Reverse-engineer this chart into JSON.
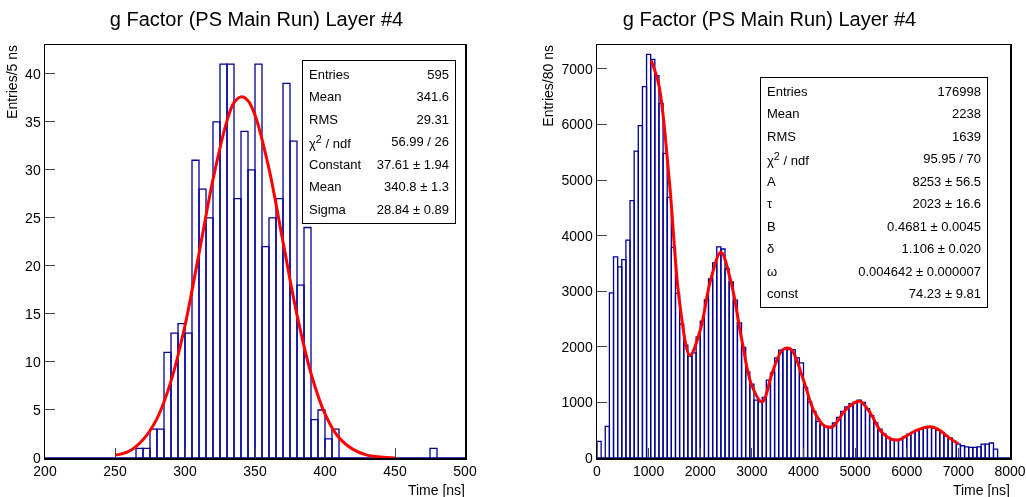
{
  "chart_data": [
    {
      "type": "histogram",
      "title": "g Factor (PS Main Run) Layer #4",
      "xlabel": "Time [ns]",
      "ylabel": "Entries/5 ns",
      "xlim": [
        200,
        500
      ],
      "xticks": [
        200,
        250,
        300,
        350,
        400,
        450,
        500
      ],
      "ylim": [
        0,
        43
      ],
      "yticks": [
        0,
        5,
        10,
        15,
        20,
        25,
        30,
        35,
        40
      ],
      "grid": false,
      "legend": false,
      "annotations": [
        "Entries",
        "595",
        "Mean",
        "341.6",
        "RMS",
        "29.31",
        "χ$^{2}$ / ndf",
        "56.99 / 26",
        "Constant",
        "37.61 ± 1.94",
        "Mean",
        "340.8 ± 1.3",
        "Sigma",
        "28.84 ± 0.89"
      ],
      "series": [
        {
          "type": "histogram",
          "color": "#000099",
          "bins": [
            200,
            205,
            210,
            215,
            220,
            225,
            230,
            235,
            240,
            245,
            250,
            255,
            260,
            265,
            270,
            275,
            280,
            285,
            290,
            295,
            300,
            305,
            310,
            315,
            320,
            325,
            330,
            335,
            340,
            345,
            350,
            355,
            360,
            365,
            370,
            375,
            380,
            385,
            390,
            395,
            400,
            405,
            410,
            415,
            420,
            425,
            430,
            435,
            440,
            445,
            450,
            455,
            460,
            465,
            470,
            475,
            480,
            485,
            490,
            495,
            500
          ],
          "values": [
            0,
            0,
            0,
            0,
            0,
            0,
            0,
            0,
            0,
            0,
            0,
            0,
            0,
            1,
            1,
            3,
            3,
            11,
            13,
            14,
            13,
            31,
            28,
            25,
            35,
            41,
            41,
            27,
            34,
            30,
            41,
            22,
            25,
            27,
            39,
            33,
            18,
            24,
            4,
            5,
            2,
            3,
            0,
            0,
            0,
            0,
            0,
            0,
            0,
            0,
            0,
            0,
            0,
            0,
            0,
            1,
            0,
            0,
            0,
            0
          ]
        },
        {
          "type": "line",
          "color": "#ff0000",
          "x": [
            250,
            260,
            270,
            280,
            290,
            300,
            310,
            320,
            330,
            335,
            340,
            345,
            350,
            360,
            370,
            380,
            390,
            400,
            410,
            420,
            430,
            440,
            450
          ],
          "values": [
            0.3,
            0.7,
            1.9,
            4.1,
            8,
            13.8,
            21.3,
            29,
            35.1,
            37,
            37.6,
            37.2,
            35.7,
            30.1,
            22.5,
            14.9,
            8.8,
            4.6,
            2.1,
            0.9,
            0.3,
            0.1,
            0
          ]
        }
      ]
    },
    {
      "type": "histogram",
      "title": "g Factor (PS Main Run) Layer #4",
      "xlabel": "Time [ns]",
      "ylabel": "Entries/80 ns",
      "xlim": [
        0,
        8000
      ],
      "xticks": [
        0,
        1000,
        2000,
        3000,
        4000,
        5000,
        6000,
        7000,
        8000
      ],
      "ylim": [
        0,
        7430
      ],
      "yticks": [
        0,
        1000,
        2000,
        3000,
        4000,
        5000,
        6000,
        7000
      ],
      "grid": false,
      "legend": false,
      "annotations": [
        "Entries",
        "176998",
        "Mean",
        "2238",
        "RMS",
        "1639",
        "χ$^{2}$ / ndf",
        "95.95 / 70",
        "A",
        "8253 ± 56.5",
        "τ",
        "2023 ± 16.6",
        "B",
        "0.4681 ± 0.0045",
        "δ",
        "1.106 ± 0.020",
        "ω",
        "0.004642 ± 0.000007",
        "const",
        "74.23 ± 9.81"
      ],
      "series": [
        {
          "type": "histogram",
          "color": "#000099",
          "bins": [
            0,
            80,
            160,
            240,
            320,
            400,
            480,
            560,
            640,
            720,
            800,
            880,
            960,
            1040,
            1120,
            1200,
            1280,
            1360,
            1440,
            1520,
            1600,
            1680,
            1760,
            1840,
            1920,
            2000,
            2080,
            2160,
            2240,
            2320,
            2400,
            2480,
            2560,
            2640,
            2720,
            2800,
            2880,
            2960,
            3040,
            3120,
            3200,
            3280,
            3360,
            3440,
            3520,
            3600,
            3680,
            3760,
            3840,
            3920,
            4000,
            4080,
            4160,
            4240,
            4320,
            4400,
            4480,
            4560,
            4640,
            4720,
            4800,
            4880,
            4960,
            5040,
            5120,
            5200,
            5280,
            5360,
            5440,
            5520,
            5600,
            5680,
            5760,
            5840,
            5920,
            6000,
            6080,
            6160,
            6240,
            6320,
            6400,
            6480,
            6560,
            6640,
            6720,
            6800,
            6880,
            6960,
            7040,
            7120,
            7200,
            7280,
            7360,
            7440,
            7520,
            7600,
            7680,
            7760,
            7840,
            7920,
            8000
          ],
          "values": [
            300,
            0,
            570,
            2970,
            3620,
            3440,
            3570,
            3920,
            4630,
            5520,
            5980,
            6680,
            7260,
            7170,
            6880,
            6380,
            5480,
            4690,
            3790,
            2960,
            2410,
            2030,
            1830,
            1890,
            2180,
            2460,
            2850,
            3220,
            3510,
            3800,
            3760,
            3400,
            3170,
            2840,
            2430,
            1990,
            1550,
            1330,
            1040,
            1010,
            1090,
            1400,
            1530,
            1800,
            1940,
            1960,
            1950,
            1950,
            1800,
            1710,
            1270,
            1010,
            840,
            660,
            600,
            570,
            570,
            630,
            730,
            840,
            920,
            980,
            1000,
            1040,
            1000,
            890,
            760,
            630,
            520,
            430,
            370,
            330,
            320,
            330,
            380,
            430,
            460,
            500,
            520,
            540,
            560,
            540,
            500,
            460,
            400,
            360,
            300,
            250,
            220,
            200,
            190,
            190,
            200,
            250,
            250,
            270,
            160,
            0,
            0,
            0
          ]
        },
        {
          "type": "line",
          "color": "#ff0000",
          "x": [
            1050,
            1200,
            1400,
            1600,
            1800,
            2000,
            2200,
            2400,
            2600,
            2800,
            3000,
            3200,
            3400,
            3600,
            3750,
            4000,
            4200,
            4400,
            4560,
            4800,
            5000,
            5100,
            5300,
            5500,
            5700,
            5850,
            6000,
            6200,
            6450,
            6600,
            6800,
            7000
          ],
          "values": [
            7150,
            6700,
            5000,
            2800,
            1850,
            2300,
            3200,
            3700,
            3150,
            2150,
            1300,
            1010,
            1550,
            1950,
            1960,
            1400,
            850,
            580,
            560,
            850,
            1000,
            1020,
            800,
            480,
            340,
            330,
            400,
            500,
            560,
            520,
            380,
            250
          ]
        }
      ]
    }
  ]
}
